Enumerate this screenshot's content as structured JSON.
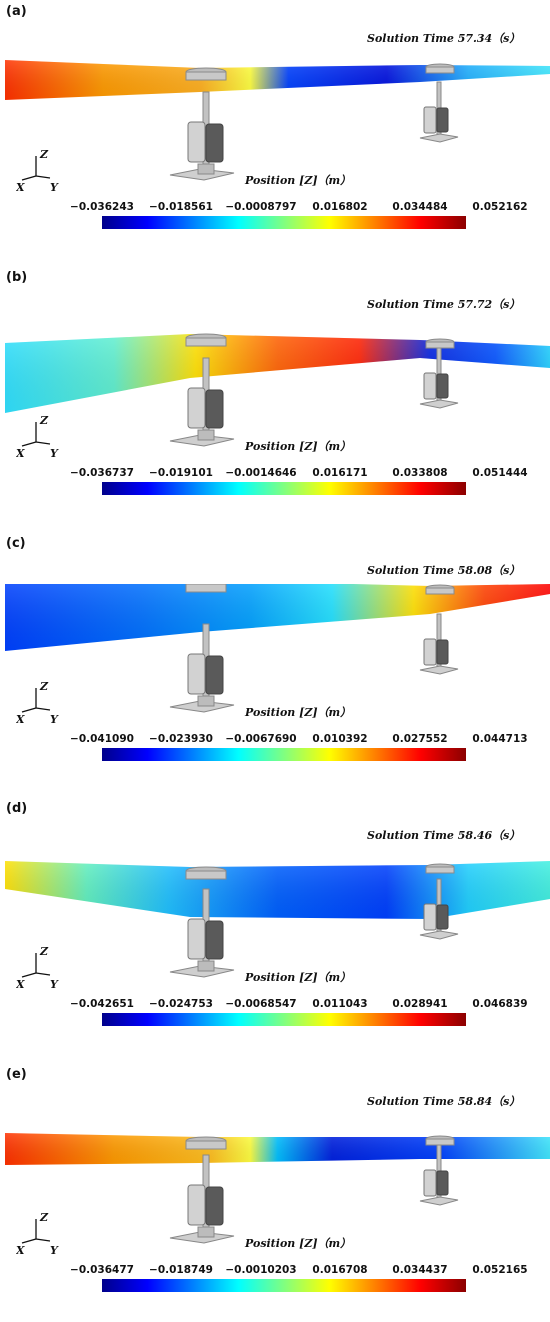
{
  "colorbar_title": "Position [Z]（m）",
  "axis_labels": {
    "z": "Z",
    "x": "X",
    "y": "Y"
  },
  "colormap": [
    "#00008b",
    "#0000ff",
    "#0080ff",
    "#00ffff",
    "#80ff80",
    "#ffff00",
    "#ff8000",
    "#ff0000",
    "#8b0000"
  ],
  "panels": [
    {
      "label": "(a)",
      "solution_time": "Solution Time 57.34（s）",
      "ticks": [
        "−0.036243",
        "−0.018561",
        "−0.0008797",
        "0.016802",
        "0.034484",
        "0.052162"
      ]
    },
    {
      "label": "(b)",
      "solution_time": "Solution Time 57.72（s）",
      "ticks": [
        "−0.036737",
        "−0.019101",
        "−0.0014646",
        "0.016171",
        "0.033808",
        "0.051444"
      ]
    },
    {
      "label": "(c)",
      "solution_time": "Solution Time 58.08（s）",
      "ticks": [
        "−0.041090",
        "−0.023930",
        "−0.0067690",
        "0.010392",
        "0.027552",
        "0.044713"
      ]
    },
    {
      "label": "(d)",
      "solution_time": "Solution Time 58.46（s）",
      "ticks": [
        "−0.042651",
        "−0.024753",
        "−0.0068547",
        "0.011043",
        "0.028941",
        "0.046839"
      ]
    },
    {
      "label": "(e)",
      "solution_time": "Solution Time 58.84（s）",
      "ticks": [
        "−0.036477",
        "−0.018749",
        "−0.0010203",
        "0.016708",
        "0.034437",
        "0.052165"
      ]
    }
  ]
}
